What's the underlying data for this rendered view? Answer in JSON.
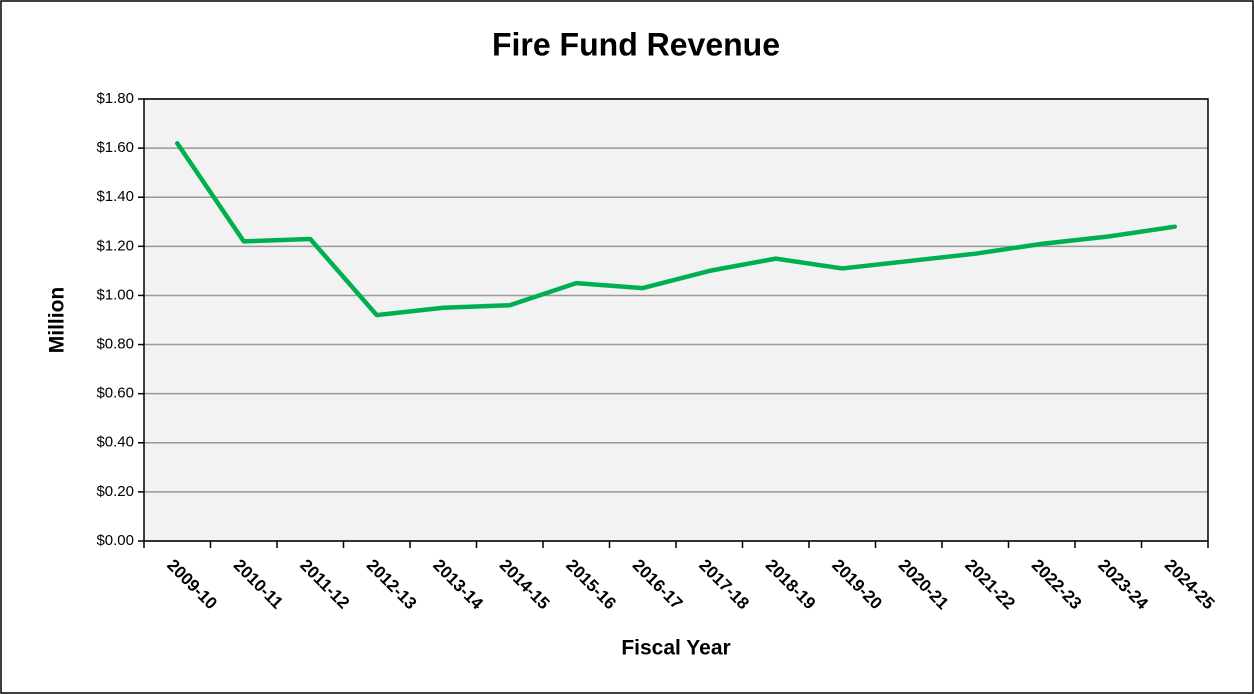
{
  "chart_data": {
    "type": "line",
    "title": "Fire Fund Revenue",
    "x_label": "Fiscal Year",
    "y_label": "Million",
    "categories": [
      "2009-10",
      "2010-11",
      "2011-12",
      "2012-13",
      "2013-14",
      "2014-15",
      "2015-16",
      "2016-17",
      "2017-18",
      "2018-19",
      "2019-20",
      "2020-21",
      "2021-22",
      "2022-23",
      "2023-24",
      "2024-25"
    ],
    "values": [
      1.62,
      1.22,
      1.23,
      0.92,
      0.95,
      0.96,
      1.05,
      1.03,
      1.1,
      1.15,
      1.11,
      1.14,
      1.17,
      1.21,
      1.24,
      1.28
    ],
    "color": "#00b050",
    "ylim": [
      0,
      1.8
    ],
    "yticks": [
      {
        "value": 0,
        "label": "$0.00"
      },
      {
        "value": 0.2,
        "label": "$0.20"
      },
      {
        "value": 0.4,
        "label": "$0.40"
      },
      {
        "value": 0.6,
        "label": "$0.60"
      },
      {
        "value": 0.8,
        "label": "$0.80"
      },
      {
        "value": 1.0,
        "label": "$1.00"
      },
      {
        "value": 1.2,
        "label": "$1.20"
      },
      {
        "value": 1.4,
        "label": "$1.40"
      },
      {
        "value": 1.6,
        "label": "$1.60"
      },
      {
        "value": 1.8,
        "label": "$1.80"
      }
    ],
    "grid": true
  }
}
